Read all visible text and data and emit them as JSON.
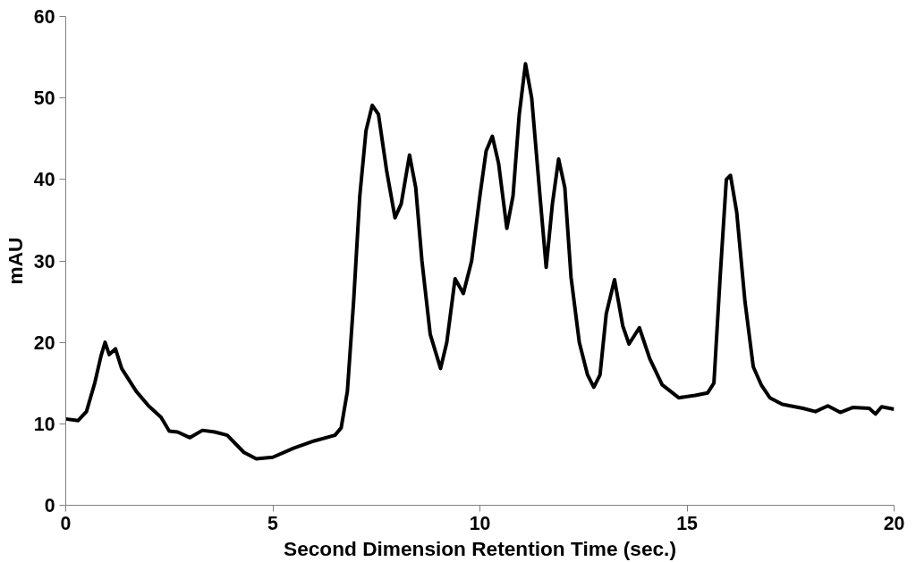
{
  "chart_data": {
    "type": "line",
    "xlabel": "Second Dimension Retention Time (sec.)",
    "ylabel": "mAU",
    "xlim": [
      0,
      20
    ],
    "xticks": [
      0,
      5,
      10,
      15,
      20
    ],
    "ylim": [
      0,
      60
    ],
    "yticks": [
      0,
      10,
      20,
      30,
      40,
      50,
      60
    ],
    "grid": false,
    "marker": "none",
    "line_style": "solid",
    "series": [
      {
        "color": "#000000",
        "x": [
          0,
          0.3,
          0.5,
          0.7,
          0.85,
          0.95,
          1.05,
          1.2,
          1.35,
          1.7,
          2.0,
          2.3,
          2.5,
          2.7,
          3.0,
          3.3,
          3.6,
          3.9,
          4.3,
          4.6,
          5.0,
          5.5,
          6.0,
          6.5,
          6.65,
          6.8,
          6.95,
          7.1,
          7.25,
          7.4,
          7.55,
          7.75,
          7.95,
          8.1,
          8.3,
          8.45,
          8.6,
          8.8,
          9.05,
          9.2,
          9.4,
          9.6,
          9.8,
          10.0,
          10.15,
          10.3,
          10.45,
          10.65,
          10.8,
          10.95,
          11.1,
          11.25,
          11.45,
          11.6,
          11.75,
          11.9,
          12.05,
          12.2,
          12.4,
          12.6,
          12.75,
          12.9,
          13.05,
          13.25,
          13.45,
          13.6,
          13.85,
          14.1,
          14.4,
          14.8,
          15.2,
          15.5,
          15.65,
          15.8,
          15.95,
          16.05,
          16.2,
          16.4,
          16.6,
          16.8,
          17.0,
          17.3,
          17.8,
          18.1,
          18.4,
          18.7,
          19.0,
          19.4,
          19.55,
          19.7,
          20
        ],
        "values": [
          10.6,
          10.4,
          11.5,
          15,
          18.3,
          20.0,
          18.5,
          19.2,
          16.8,
          14,
          12.2,
          10.8,
          9.1,
          9.0,
          8.3,
          9.2,
          9.0,
          8.6,
          6.5,
          5.7,
          5.9,
          7.0,
          7.9,
          8.6,
          9.5,
          14,
          25,
          38,
          46,
          49.1,
          48,
          41,
          35.3,
          37,
          43,
          39,
          30,
          21,
          16.8,
          20,
          27.8,
          26,
          30,
          38,
          43.5,
          45.3,
          42,
          34,
          38,
          48,
          54.2,
          50,
          38,
          29.2,
          37,
          42.5,
          39,
          28,
          20,
          16,
          14.5,
          16,
          23.5,
          27.7,
          22,
          19.8,
          21.8,
          18,
          14.8,
          13.2,
          13.5,
          13.8,
          15,
          28,
          40,
          40.5,
          36,
          25,
          17,
          14.7,
          13.2,
          12.4,
          11.9,
          11.5,
          12.2,
          11.4,
          12.0,
          11.9,
          11.2,
          12.1,
          11.8
        ]
      }
    ]
  }
}
